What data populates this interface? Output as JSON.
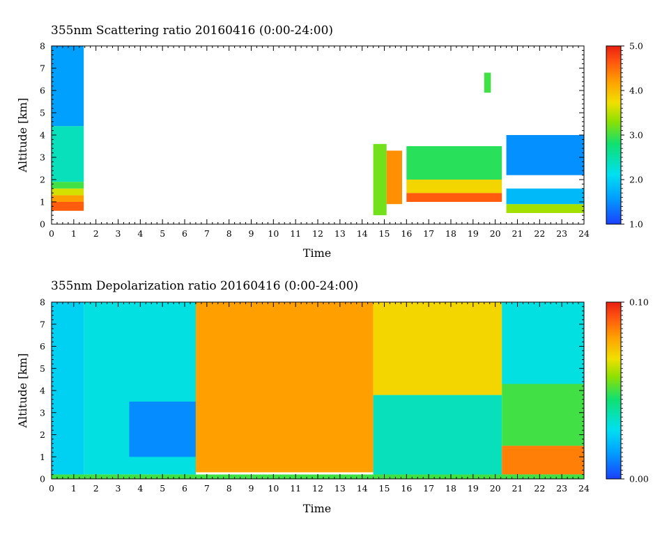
{
  "chart_data": [
    {
      "type": "heatmap",
      "title": "355nm Scattering ratio  20160416 (0:00-24:00)",
      "xlabel": "Time",
      "ylabel": "Altitude [km]",
      "xlim": [
        0,
        24
      ],
      "ylim": [
        0,
        8
      ],
      "x_ticks": [
        "0",
        "1",
        "2",
        "3",
        "4",
        "5",
        "6",
        "7",
        "8",
        "9",
        "10",
        "11",
        "12",
        "13",
        "14",
        "15",
        "16",
        "17",
        "18",
        "19",
        "20",
        "21",
        "22",
        "23",
        "24"
      ],
      "y_ticks": [
        "0",
        "1",
        "2",
        "3",
        "4",
        "5",
        "6",
        "7",
        "8"
      ],
      "colorbar": {
        "min": 1.0,
        "max": 5.0,
        "tick_labels": [
          "1.0",
          "2.0",
          "3.0",
          "4.0",
          "5.0"
        ]
      },
      "regions": [
        {
          "t": [
            0.0,
            1.45
          ],
          "alt": [
            0.6,
            1.0
          ],
          "value": 4.6
        },
        {
          "t": [
            0.0,
            1.45
          ],
          "alt": [
            1.0,
            1.3
          ],
          "value": 4.2
        },
        {
          "t": [
            0.0,
            1.45
          ],
          "alt": [
            1.3,
            1.6
          ],
          "value": 3.6
        },
        {
          "t": [
            0.0,
            1.45
          ],
          "alt": [
            1.6,
            1.9
          ],
          "value": 3.0
        },
        {
          "t": [
            0.0,
            1.45
          ],
          "alt": [
            1.9,
            4.4
          ],
          "value": 2.4
        },
        {
          "t": [
            0.0,
            1.45
          ],
          "alt": [
            4.4,
            8.0
          ],
          "value": 1.6
        },
        {
          "t": [
            14.5,
            15.1
          ],
          "alt": [
            0.4,
            3.6
          ],
          "value": 3.2
        },
        {
          "t": [
            15.1,
            15.8
          ],
          "alt": [
            0.9,
            3.3
          ],
          "value": 4.3
        },
        {
          "t": [
            16.0,
            20.3
          ],
          "alt": [
            1.0,
            1.4
          ],
          "value": 4.6
        },
        {
          "t": [
            16.0,
            20.3
          ],
          "alt": [
            1.4,
            2.0
          ],
          "value": 3.8
        },
        {
          "t": [
            16.0,
            20.3
          ],
          "alt": [
            2.0,
            3.5
          ],
          "value": 2.9
        },
        {
          "t": [
            20.5,
            24.0
          ],
          "alt": [
            0.5,
            0.9
          ],
          "value": 3.4
        },
        {
          "t": [
            20.5,
            24.0
          ],
          "alt": [
            0.9,
            1.6
          ],
          "value": 1.8
        },
        {
          "t": [
            20.5,
            24.0
          ],
          "alt": [
            2.2,
            4.0
          ],
          "value": 1.5
        },
        {
          "t": [
            19.5,
            19.8
          ],
          "alt": [
            5.9,
            6.8
          ],
          "value": 3.0
        }
      ]
    },
    {
      "type": "heatmap",
      "title": "355nm Depolarization ratio  20160416 (0:00-24:00)",
      "xlabel": "Time",
      "ylabel": "Altitude [km]",
      "xlim": [
        0,
        24
      ],
      "ylim": [
        0,
        8
      ],
      "x_ticks": [
        "0",
        "1",
        "2",
        "3",
        "4",
        "5",
        "6",
        "7",
        "8",
        "9",
        "10",
        "11",
        "12",
        "13",
        "14",
        "15",
        "16",
        "17",
        "18",
        "19",
        "20",
        "21",
        "22",
        "23",
        "24"
      ],
      "y_ticks": [
        "0",
        "1",
        "2",
        "3",
        "4",
        "5",
        "6",
        "7",
        "8"
      ],
      "colorbar": {
        "min": 0.0,
        "max": 0.1,
        "tick_labels": [
          "0.00",
          "0.10"
        ]
      },
      "regions": [
        {
          "t": [
            0.0,
            1.45
          ],
          "alt": [
            0.0,
            8.0
          ],
          "value": 0.025
        },
        {
          "t": [
            1.45,
            6.5
          ],
          "alt": [
            0.2,
            8.0
          ],
          "value": 0.03
        },
        {
          "t": [
            3.5,
            6.5
          ],
          "alt": [
            1.0,
            3.5
          ],
          "value": 0.012
        },
        {
          "t": [
            6.5,
            14.5
          ],
          "alt": [
            0.3,
            8.0
          ],
          "value": 0.08
        },
        {
          "t": [
            14.5,
            20.3
          ],
          "alt": [
            0.1,
            3.8
          ],
          "value": 0.035
        },
        {
          "t": [
            14.5,
            20.3
          ],
          "alt": [
            3.8,
            8.0
          ],
          "value": 0.07
        },
        {
          "t": [
            20.3,
            24.0
          ],
          "alt": [
            1.5,
            4.3
          ],
          "value": 0.05
        },
        {
          "t": [
            20.3,
            24.0
          ],
          "alt": [
            0.2,
            1.5
          ],
          "value": 0.085
        },
        {
          "t": [
            20.3,
            24.0
          ],
          "alt": [
            4.3,
            8.0
          ],
          "value": 0.03
        },
        {
          "t": [
            0.0,
            24.0
          ],
          "alt": [
            0.0,
            0.2
          ],
          "value": 0.05
        }
      ]
    }
  ]
}
